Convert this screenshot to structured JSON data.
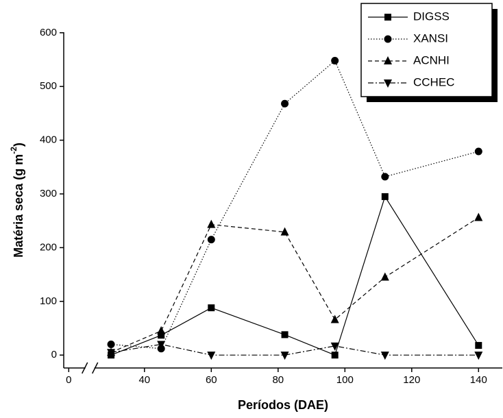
{
  "chart_data": {
    "type": "line",
    "x_label": "Períodos (DAE)",
    "y_label": [
      "Matéria seca (g m",
      "-2",
      ")"
    ],
    "x": [
      30,
      45,
      60,
      82,
      97,
      112,
      140
    ],
    "series": [
      {
        "name": "DIGSS",
        "color": "#000000",
        "marker": "square",
        "dash": "solid",
        "values": [
          0,
          37,
          88,
          38,
          0,
          295,
          18
        ]
      },
      {
        "name": "XANSI",
        "color": "#000000",
        "marker": "circle",
        "dash": "dotted",
        "values": [
          20,
          12,
          215,
          468,
          548,
          332,
          379
        ]
      },
      {
        "name": "ACNHI",
        "color": "#000000",
        "marker": "triangle-up",
        "dash": "dashed",
        "values": [
          5,
          45,
          243,
          229,
          66,
          145,
          256
        ]
      },
      {
        "name": "CCHEC",
        "color": "#000000",
        "marker": "triangle-down",
        "dash": "dashdot",
        "values": [
          5,
          20,
          0,
          0,
          17,
          0,
          0
        ]
      }
    ],
    "xlim": [
      -1.5,
      147.3
    ],
    "xticks": [
      0,
      40,
      60,
      80,
      100,
      120,
      140
    ],
    "x_break": [
      5,
      25
    ],
    "ylim": [
      -24,
      601
    ],
    "yticks": [
      0,
      100,
      200,
      300,
      400,
      500,
      600
    ],
    "legend": "top-right"
  }
}
